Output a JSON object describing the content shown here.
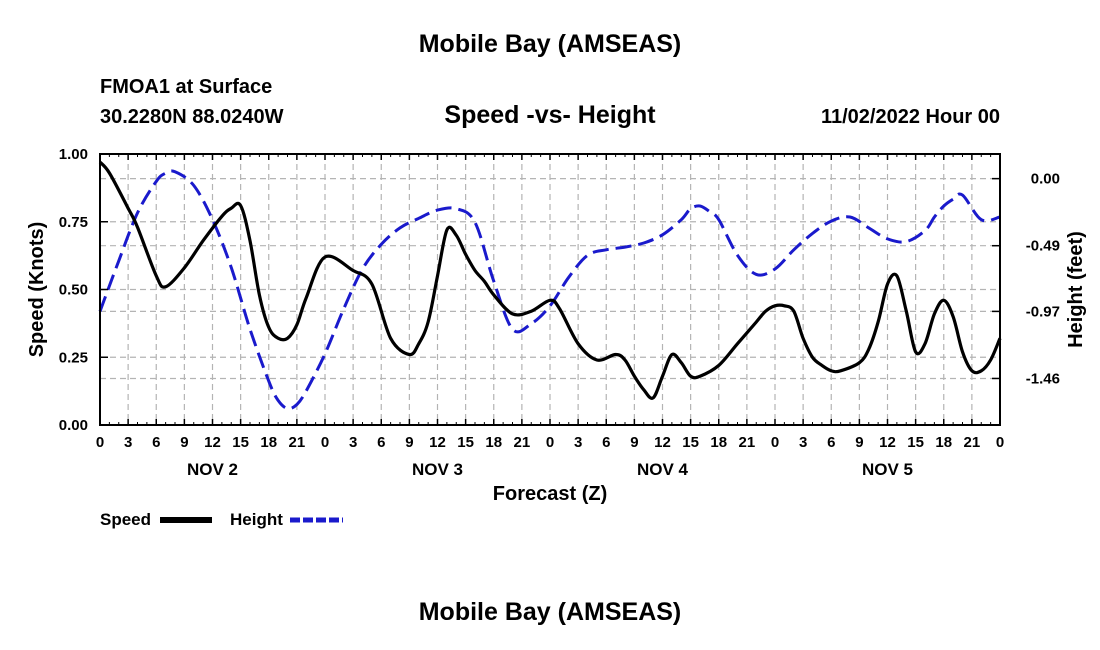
{
  "header": {
    "main_title": "Mobile Bay (AMSEAS)",
    "station_label": "FMOA1 at Surface",
    "coords": "30.2280N  88.0240W",
    "subtitle": "Speed -vs- Height",
    "timestamp": "11/02/2022 Hour 00"
  },
  "footer": {
    "main_title": "Mobile Bay (AMSEAS)"
  },
  "colors": {
    "speed": "#000000",
    "height": "#1a1acc",
    "grid": "#b4b4b4"
  },
  "chart_data": {
    "type": "line",
    "title": "Speed -vs- Height",
    "xlabel": "Forecast (Z)",
    "ylabel": "Speed (Knots)",
    "y2label": "Height (feet)",
    "xlim": [
      0,
      96
    ],
    "ylim": [
      0,
      1.0
    ],
    "y2lim": [
      -1.8,
      0.18
    ],
    "x_tick_values": [
      0,
      3,
      6,
      9,
      12,
      15,
      18,
      21,
      24,
      27,
      30,
      33,
      36,
      39,
      42,
      45,
      48,
      51,
      54,
      57,
      60,
      63,
      66,
      69,
      72,
      75,
      78,
      81,
      84,
      87,
      90,
      93,
      96
    ],
    "x_tick_labels": [
      "0",
      "3",
      "6",
      "9",
      "12",
      "15",
      "18",
      "21",
      "0",
      "3",
      "6",
      "9",
      "12",
      "15",
      "18",
      "21",
      "0",
      "3",
      "6",
      "9",
      "12",
      "15",
      "18",
      "21",
      "0",
      "3",
      "6",
      "9",
      "12",
      "15",
      "18",
      "21",
      "0"
    ],
    "day_labels": [
      {
        "label": "NOV 2",
        "x": 12
      },
      {
        "label": "NOV 3",
        "x": 36
      },
      {
        "label": "NOV 4",
        "x": 60
      },
      {
        "label": "NOV 5",
        "x": 84
      }
    ],
    "y_ticks": [
      0.0,
      0.25,
      0.5,
      0.75,
      1.0
    ],
    "y_tick_labels": [
      "0.00",
      "0.25",
      "0.50",
      "0.75",
      "1.00"
    ],
    "y2_ticks": [
      0.0,
      -0.49,
      -0.97,
      -1.46
    ],
    "y2_tick_labels": [
      "0.00",
      "-0.49",
      "-0.97",
      "-1.46"
    ],
    "grid": true,
    "legend_position": "bottom-left",
    "series": [
      {
        "name": "Speed",
        "axis": "left",
        "style": "solid",
        "x": [
          0,
          1,
          3,
          4,
          6,
          7,
          9,
          11,
          13,
          14,
          15,
          16,
          17,
          18,
          19,
          20,
          21,
          22,
          24,
          27,
          29,
          31,
          33,
          34,
          35,
          36,
          37,
          38,
          39,
          40,
          41,
          42,
          44,
          46,
          48,
          49,
          51,
          53,
          55,
          56,
          57,
          58,
          59,
          60,
          61,
          62,
          63,
          64,
          66,
          68,
          70,
          71,
          72,
          73,
          74,
          75,
          76,
          77,
          78,
          79,
          81,
          82,
          83,
          84,
          85,
          86,
          87,
          88,
          89,
          90,
          91,
          92,
          93,
          94,
          95,
          96
        ],
        "values": [
          0.97,
          0.93,
          0.8,
          0.73,
          0.55,
          0.51,
          0.58,
          0.68,
          0.77,
          0.8,
          0.81,
          0.68,
          0.48,
          0.36,
          0.32,
          0.32,
          0.37,
          0.47,
          0.62,
          0.57,
          0.52,
          0.32,
          0.26,
          0.3,
          0.38,
          0.55,
          0.72,
          0.7,
          0.63,
          0.57,
          0.53,
          0.48,
          0.41,
          0.42,
          0.46,
          0.43,
          0.3,
          0.24,
          0.26,
          0.24,
          0.18,
          0.13,
          0.1,
          0.18,
          0.26,
          0.23,
          0.18,
          0.18,
          0.22,
          0.3,
          0.38,
          0.42,
          0.44,
          0.44,
          0.42,
          0.32,
          0.25,
          0.22,
          0.2,
          0.2,
          0.23,
          0.28,
          0.38,
          0.52,
          0.55,
          0.42,
          0.27,
          0.3,
          0.41,
          0.46,
          0.4,
          0.27,
          0.2,
          0.2,
          0.24,
          0.32
        ]
      },
      {
        "name": "Height",
        "axis": "right",
        "style": "dashed",
        "x": [
          0,
          2,
          4,
          6,
          7,
          8,
          10,
          12,
          14,
          16,
          18,
          19,
          20,
          21,
          22,
          24,
          26,
          28,
          30,
          32,
          34,
          36,
          38,
          40,
          42,
          44,
          46,
          48,
          50,
          52,
          54,
          56,
          58,
          60,
          62,
          63,
          64,
          65,
          66,
          68,
          70,
          72,
          74,
          76,
          78,
          80,
          82,
          84,
          86,
          88,
          89,
          90,
          91,
          92,
          94,
          96
        ],
        "values": [
          -0.97,
          -0.6,
          -0.25,
          -0.02,
          0.04,
          0.05,
          -0.05,
          -0.3,
          -0.65,
          -1.1,
          -1.48,
          -1.62,
          -1.68,
          -1.65,
          -1.55,
          -1.28,
          -0.95,
          -0.66,
          -0.48,
          -0.36,
          -0.29,
          -0.23,
          -0.22,
          -0.32,
          -0.75,
          -1.1,
          -1.06,
          -0.93,
          -0.72,
          -0.56,
          -0.52,
          -0.5,
          -0.47,
          -0.41,
          -0.3,
          -0.22,
          -0.2,
          -0.24,
          -0.3,
          -0.56,
          -0.7,
          -0.66,
          -0.52,
          -0.4,
          -0.31,
          -0.28,
          -0.36,
          -0.44,
          -0.46,
          -0.38,
          -0.28,
          -0.2,
          -0.15,
          -0.12,
          -0.3,
          -0.28
        ]
      }
    ]
  }
}
